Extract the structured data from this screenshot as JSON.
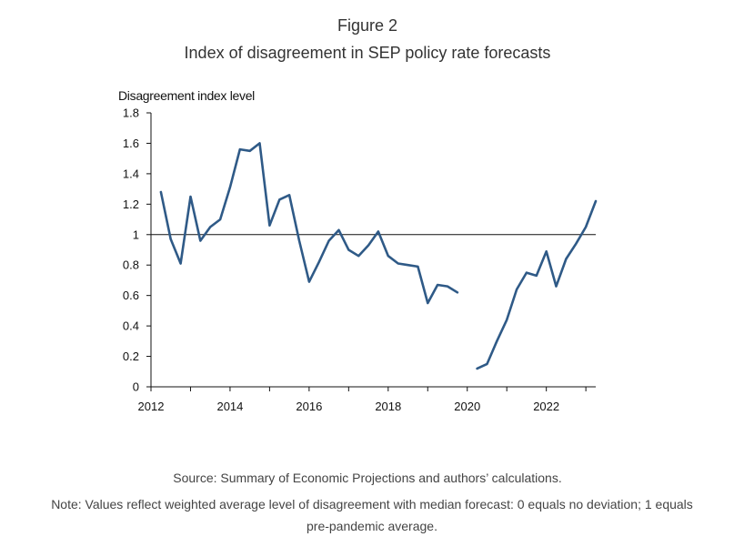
{
  "figure": {
    "number": "Figure 2",
    "title": "Index of disagreement in SEP policy rate forecasts"
  },
  "chart_data": {
    "type": "line",
    "ylabel": "Disagreement index level",
    "xlabel": "",
    "ylim": [
      0,
      1.8
    ],
    "xlim": [
      2012.0,
      2023.25
    ],
    "y_ticks": [
      "0",
      "0.2",
      "0.4",
      "0.6",
      "0.8",
      "1",
      "1.2",
      "1.4",
      "1.6",
      "1.8"
    ],
    "y_tick_values": [
      0,
      0.2,
      0.4,
      0.6,
      0.8,
      1.0,
      1.2,
      1.4,
      1.6,
      1.8
    ],
    "x_ticks": [
      "2012",
      "2014",
      "2016",
      "2018",
      "2020",
      "2022"
    ],
    "x_tick_values": [
      2012,
      2014,
      2016,
      2018,
      2020,
      2022
    ],
    "reference_line": 1.0,
    "line_color": "#2f5a87",
    "series": [
      {
        "segment": "pre-pandemic",
        "x": [
          2012.25,
          2012.5,
          2012.75,
          2013.0,
          2013.25,
          2013.5,
          2013.75,
          2014.0,
          2014.25,
          2014.5,
          2014.75,
          2015.0,
          2015.25,
          2015.5,
          2015.75,
          2016.0,
          2016.25,
          2016.5,
          2016.75,
          2017.0,
          2017.25,
          2017.5,
          2017.75,
          2018.0,
          2018.25,
          2018.5,
          2018.75,
          2019.0,
          2019.25,
          2019.5,
          2019.75
        ],
        "y": [
          1.28,
          0.97,
          0.81,
          1.25,
          0.96,
          1.05,
          1.1,
          1.31,
          1.56,
          1.55,
          1.6,
          1.06,
          1.23,
          1.26,
          0.96,
          0.69,
          0.82,
          0.96,
          1.03,
          0.9,
          0.86,
          0.93,
          1.02,
          0.86,
          0.81,
          0.8,
          0.79,
          0.55,
          0.67,
          0.66,
          0.62
        ]
      },
      {
        "segment": "post-pandemic",
        "x": [
          2020.25,
          2020.5,
          2020.75,
          2021.0,
          2021.25,
          2021.5,
          2021.75,
          2022.0,
          2022.25,
          2022.5,
          2022.75,
          2023.0,
          2023.25
        ],
        "y": [
          0.12,
          0.15,
          0.3,
          0.44,
          0.64,
          0.75,
          0.73,
          0.89,
          0.66,
          0.84,
          0.94,
          1.05,
          1.22
        ]
      }
    ]
  },
  "footer": {
    "source": "Source: Summary of Economic Projections and authors’ calculations.",
    "note_line1": "Note: Values reflect weighted average level of disagreement with median forecast: 0 equals no deviation; 1 equals",
    "note_line2": "pre-pandemic average."
  }
}
